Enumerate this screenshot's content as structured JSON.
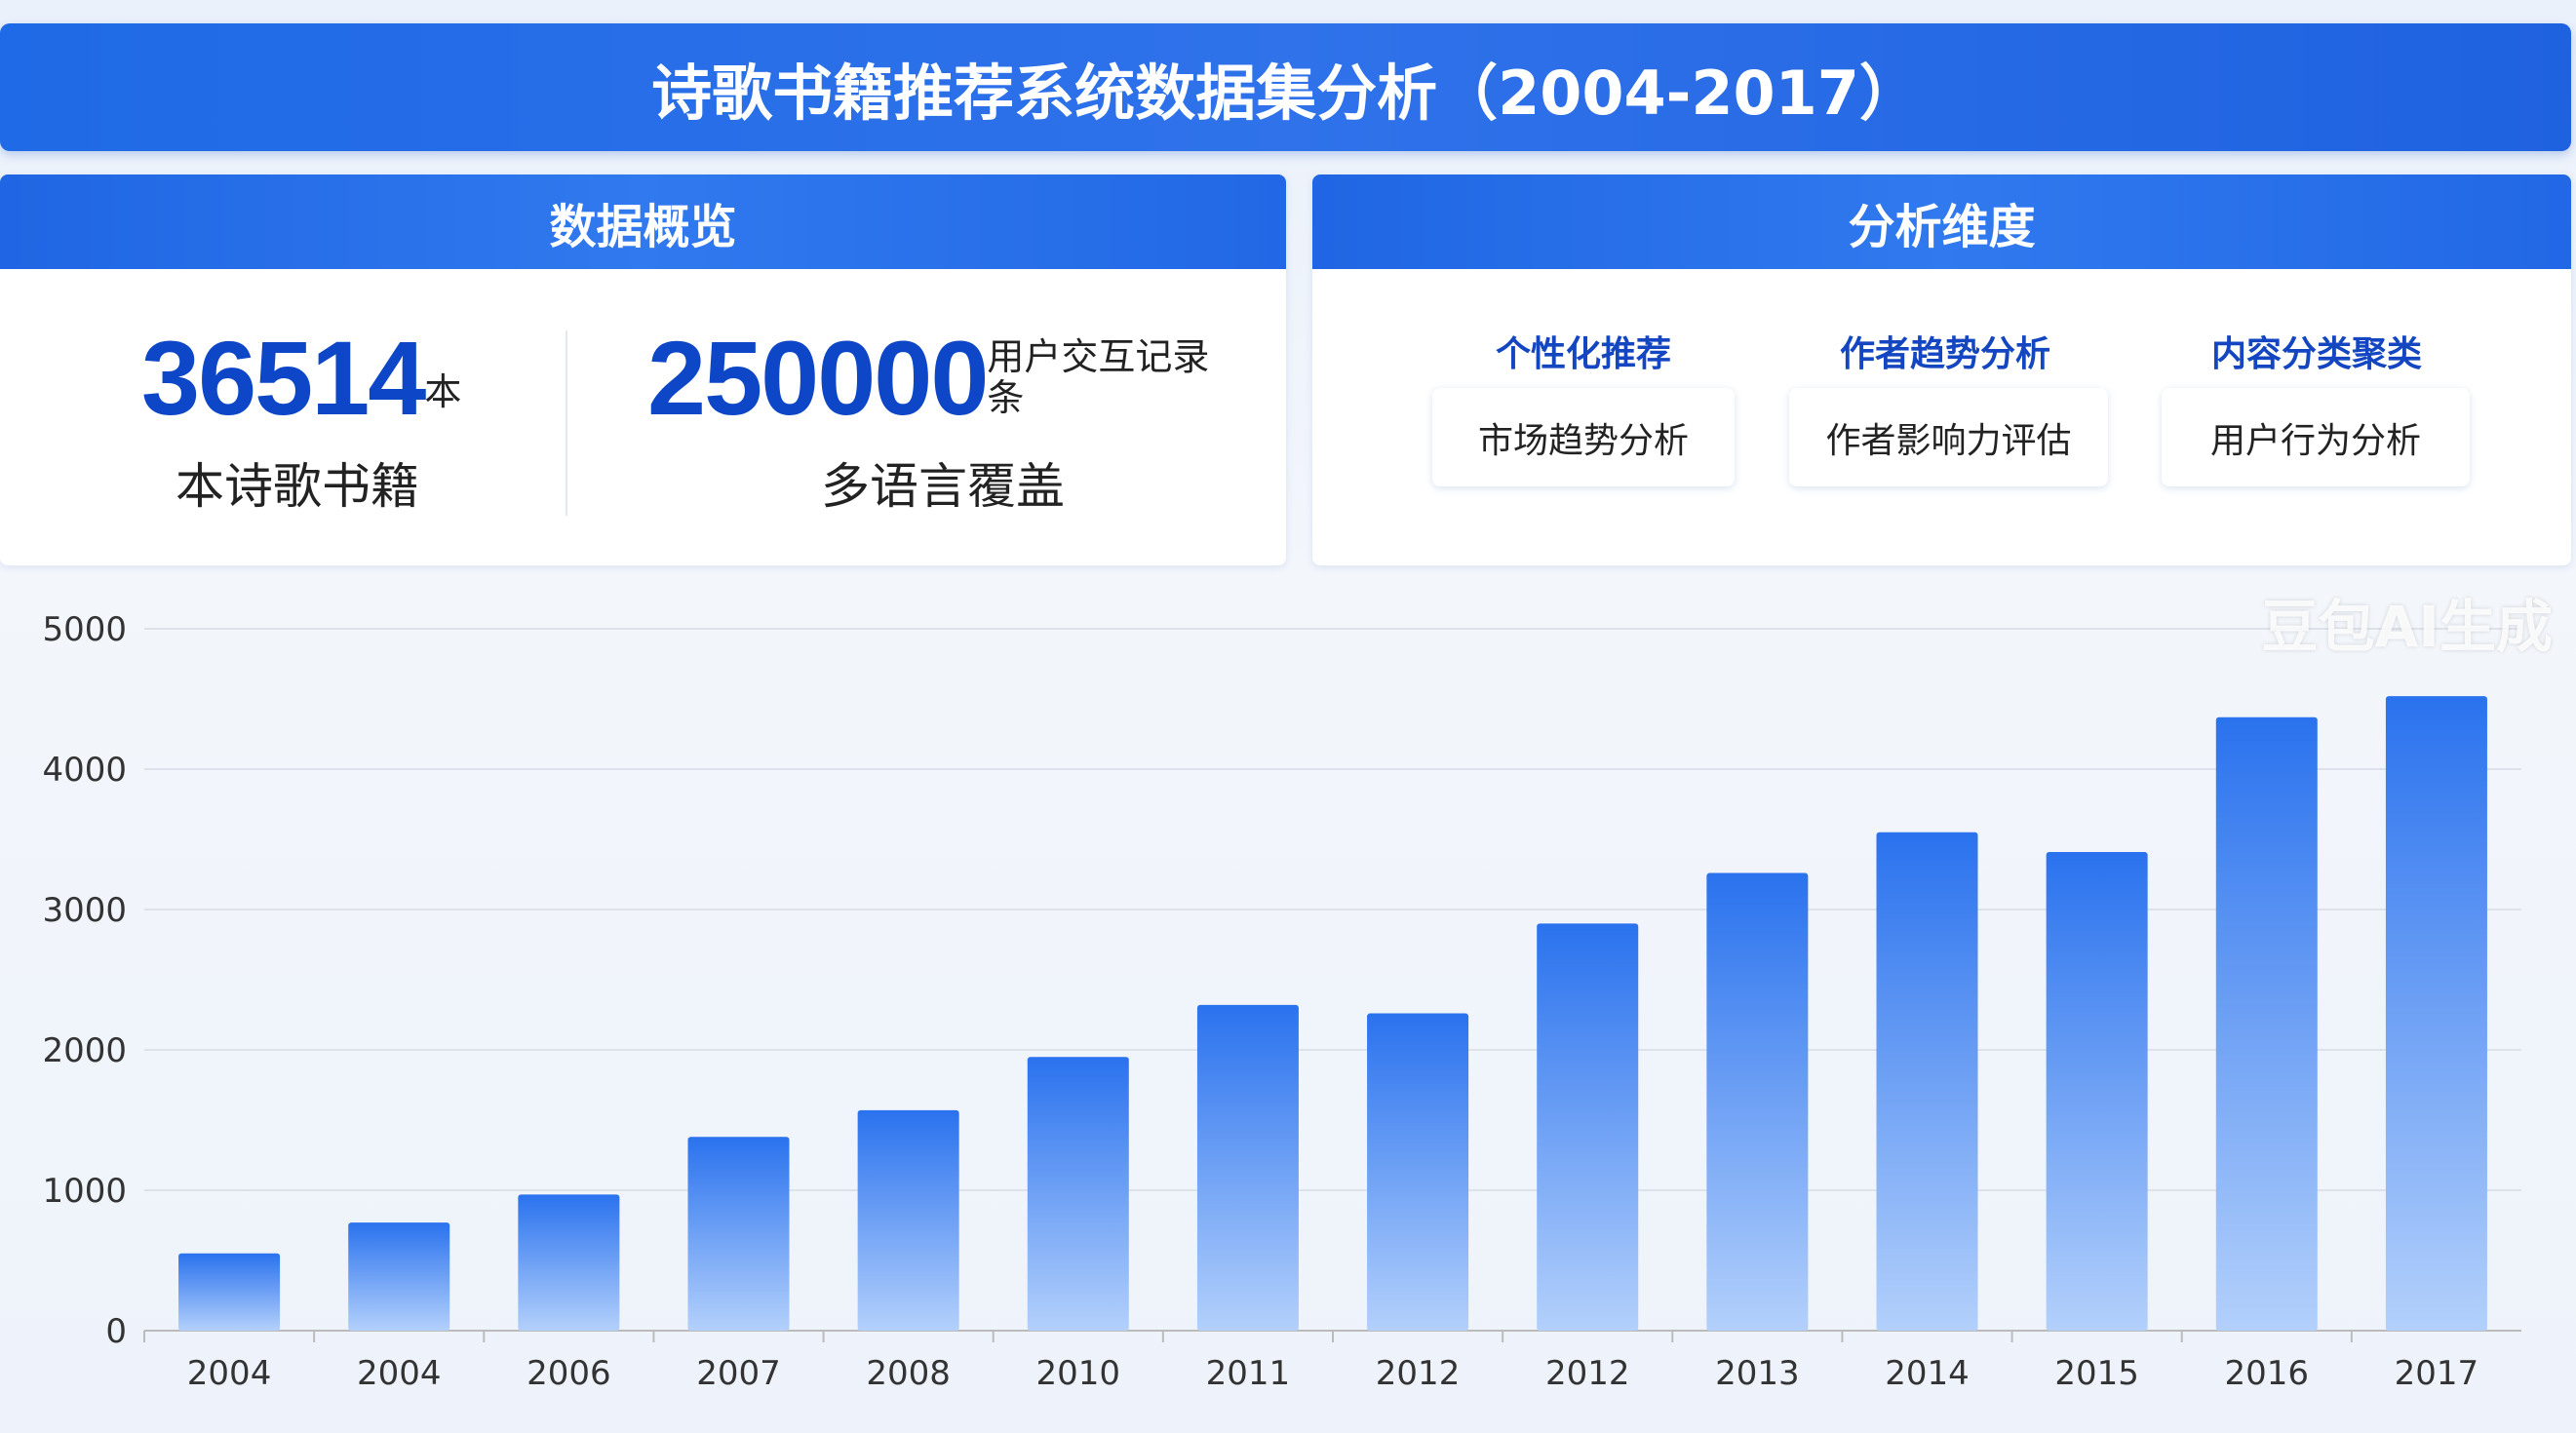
{
  "header": {
    "title": "诗歌书籍推荐系统数据集分析（2004-2017）"
  },
  "overview": {
    "title": "数据概览",
    "stat1": {
      "value": "36514",
      "unit": "本",
      "label": "本诗歌书籍"
    },
    "stat2": {
      "value": "250000",
      "unit": "用户交互记录条",
      "label": "多语言覆盖"
    }
  },
  "dimensions": {
    "title": "分析维度",
    "categories": [
      "个性化推荐",
      "作者趋势分析",
      "内容分类聚类"
    ],
    "cards": [
      "市场趋势分析",
      "作者影响力评估",
      "用户行为分析"
    ]
  },
  "watermark": "豆包AI生成",
  "colors": {
    "accent": "#2066e4",
    "bar_top": "#2a72ee",
    "bar_bottom": "#b3d0fb",
    "stat": "#0d47c8"
  },
  "chart_data": {
    "type": "bar",
    "categories": [
      "2004",
      "2004",
      "2006",
      "2007",
      "2008",
      "2010",
      "2011",
      "2012",
      "2012",
      "2013",
      "2014",
      "2015",
      "2016",
      "2017"
    ],
    "values": [
      550,
      770,
      970,
      1380,
      1570,
      1950,
      2320,
      2260,
      2900,
      3260,
      3550,
      3410,
      4370,
      4520
    ],
    "yticks": [
      0,
      1000,
      2000,
      3000,
      4000,
      5000
    ],
    "ylim": [
      0,
      5000
    ],
    "grid": true,
    "title": "",
    "xlabel": "",
    "ylabel": ""
  }
}
